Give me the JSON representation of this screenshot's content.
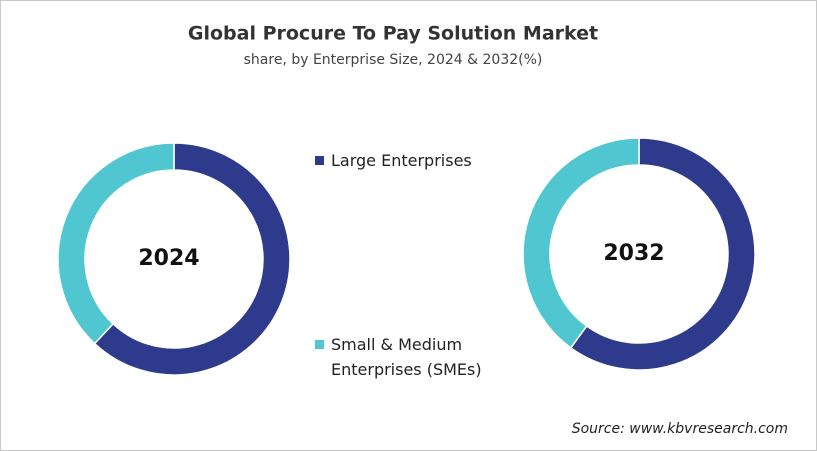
{
  "chart_data": {
    "type": "donut",
    "title": "Global Procure To Pay Solution Market",
    "subtitle": "share, by Enterprise Size, 2024 & 2032(%)",
    "categories": [
      "Large Enterprises",
      "Small & Medium Enterprises (SMEs)"
    ],
    "colors": [
      "#2e3a8c",
      "#4fc6d0"
    ],
    "series": [
      {
        "name": "2024",
        "values": [
          62,
          38
        ]
      },
      {
        "name": "2032",
        "values": [
          60,
          40
        ]
      }
    ],
    "source": "Source: www.kbvresearch.com"
  }
}
